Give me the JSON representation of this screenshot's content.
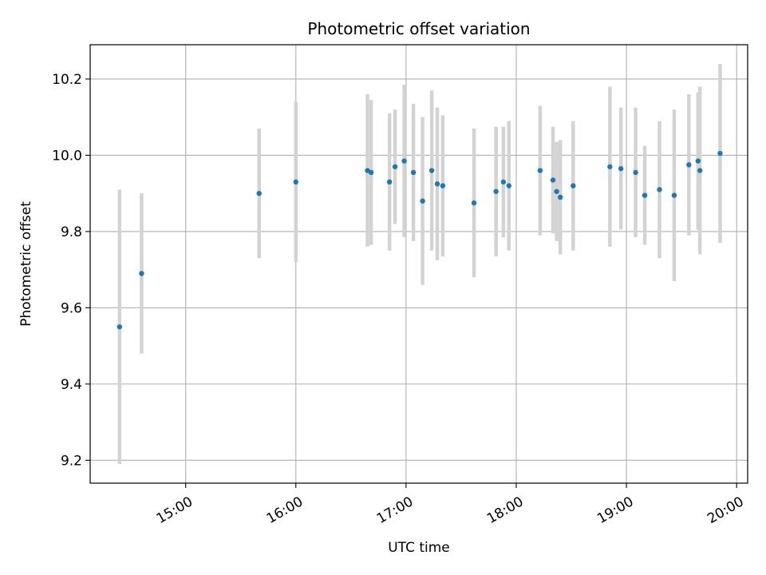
{
  "chart_data": {
    "type": "scatter",
    "title": "Photometric offset variation",
    "xlabel": "UTC time",
    "ylabel": "Photometric offset",
    "x_unit": "UTC time (HH:MM)",
    "xlim": [
      "14:08",
      "20:06"
    ],
    "ylim": [
      9.14,
      10.29
    ],
    "grid": true,
    "x_ticks": [
      "15:00",
      "16:00",
      "17:00",
      "18:00",
      "19:00",
      "20:00"
    ],
    "y_ticks": [
      9.2,
      9.4,
      9.6,
      9.8,
      10.0,
      10.2
    ],
    "point_color": "#1f77b4",
    "errorbar_color": "#d3d3d3",
    "points": [
      {
        "t": "14:24",
        "y": 9.55,
        "err": 0.36
      },
      {
        "t": "14:36",
        "y": 9.69,
        "err": 0.21
      },
      {
        "t": "15:40",
        "y": 9.9,
        "err": 0.17
      },
      {
        "t": "16:00",
        "y": 9.93,
        "err": 0.21
      },
      {
        "t": "16:39",
        "y": 9.96,
        "err": 0.2
      },
      {
        "t": "16:41",
        "y": 9.955,
        "err": 0.19
      },
      {
        "t": "16:51",
        "y": 9.93,
        "err": 0.18
      },
      {
        "t": "16:54",
        "y": 9.97,
        "err": 0.15
      },
      {
        "t": "16:59",
        "y": 9.985,
        "err": 0.2
      },
      {
        "t": "17:04",
        "y": 9.955,
        "err": 0.18
      },
      {
        "t": "17:09",
        "y": 9.88,
        "err": 0.22
      },
      {
        "t": "17:14",
        "y": 9.96,
        "err": 0.21
      },
      {
        "t": "17:17",
        "y": 9.925,
        "err": 0.2
      },
      {
        "t": "17:20",
        "y": 9.92,
        "err": 0.185
      },
      {
        "t": "17:37",
        "y": 9.875,
        "err": 0.195
      },
      {
        "t": "17:49",
        "y": 9.905,
        "err": 0.17
      },
      {
        "t": "17:53",
        "y": 9.93,
        "err": 0.145
      },
      {
        "t": "17:56",
        "y": 9.92,
        "err": 0.17
      },
      {
        "t": "18:13",
        "y": 9.96,
        "err": 0.17
      },
      {
        "t": "18:20",
        "y": 9.935,
        "err": 0.14
      },
      {
        "t": "18:22",
        "y": 9.905,
        "err": 0.13
      },
      {
        "t": "18:24",
        "y": 9.89,
        "err": 0.15
      },
      {
        "t": "18:31",
        "y": 9.92,
        "err": 0.17
      },
      {
        "t": "18:51",
        "y": 9.97,
        "err": 0.21
      },
      {
        "t": "18:57",
        "y": 9.965,
        "err": 0.16
      },
      {
        "t": "19:05",
        "y": 9.955,
        "err": 0.17
      },
      {
        "t": "19:10",
        "y": 9.895,
        "err": 0.13
      },
      {
        "t": "19:18",
        "y": 9.91,
        "err": 0.18
      },
      {
        "t": "19:26",
        "y": 9.895,
        "err": 0.225
      },
      {
        "t": "19:34",
        "y": 9.975,
        "err": 0.185
      },
      {
        "t": "19:39",
        "y": 9.985,
        "err": 0.18
      },
      {
        "t": "19:40",
        "y": 9.96,
        "err": 0.22
      },
      {
        "t": "19:51",
        "y": 10.005,
        "err": 0.235
      }
    ]
  }
}
